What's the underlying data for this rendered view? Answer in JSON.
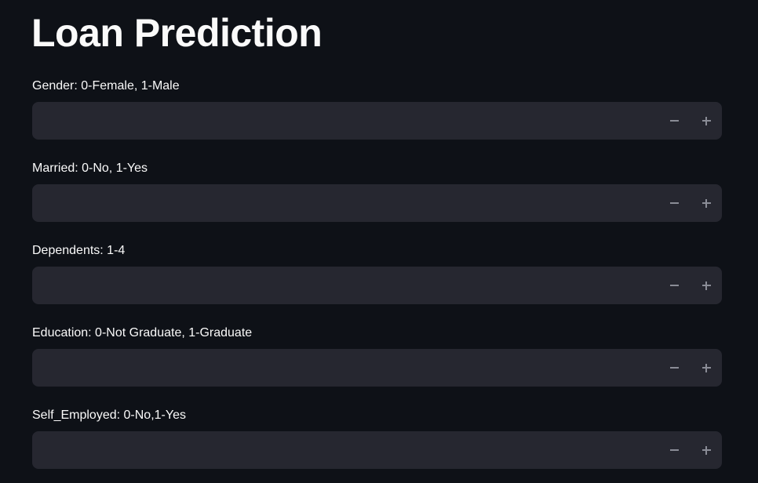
{
  "page": {
    "title": "Loan Prediction"
  },
  "fields": [
    {
      "label": "Gender: 0-Female, 1-Male",
      "value": "",
      "placeholder": ""
    },
    {
      "label": "Married: 0-No, 1-Yes",
      "value": "",
      "placeholder": ""
    },
    {
      "label": "Dependents: 1-4",
      "value": "",
      "placeholder": ""
    },
    {
      "label": "Education: 0-Not Graduate, 1-Graduate",
      "value": "",
      "placeholder": ""
    },
    {
      "label": "Self_Employed: 0-No,1-Yes",
      "value": "",
      "placeholder": ""
    }
  ],
  "icons": {
    "decrement": "minus-icon",
    "increment": "plus-icon"
  },
  "colors": {
    "background": "#0e1117",
    "input_background": "#262730",
    "text": "#fafafa",
    "stepper_icon": "#8a8c96"
  }
}
